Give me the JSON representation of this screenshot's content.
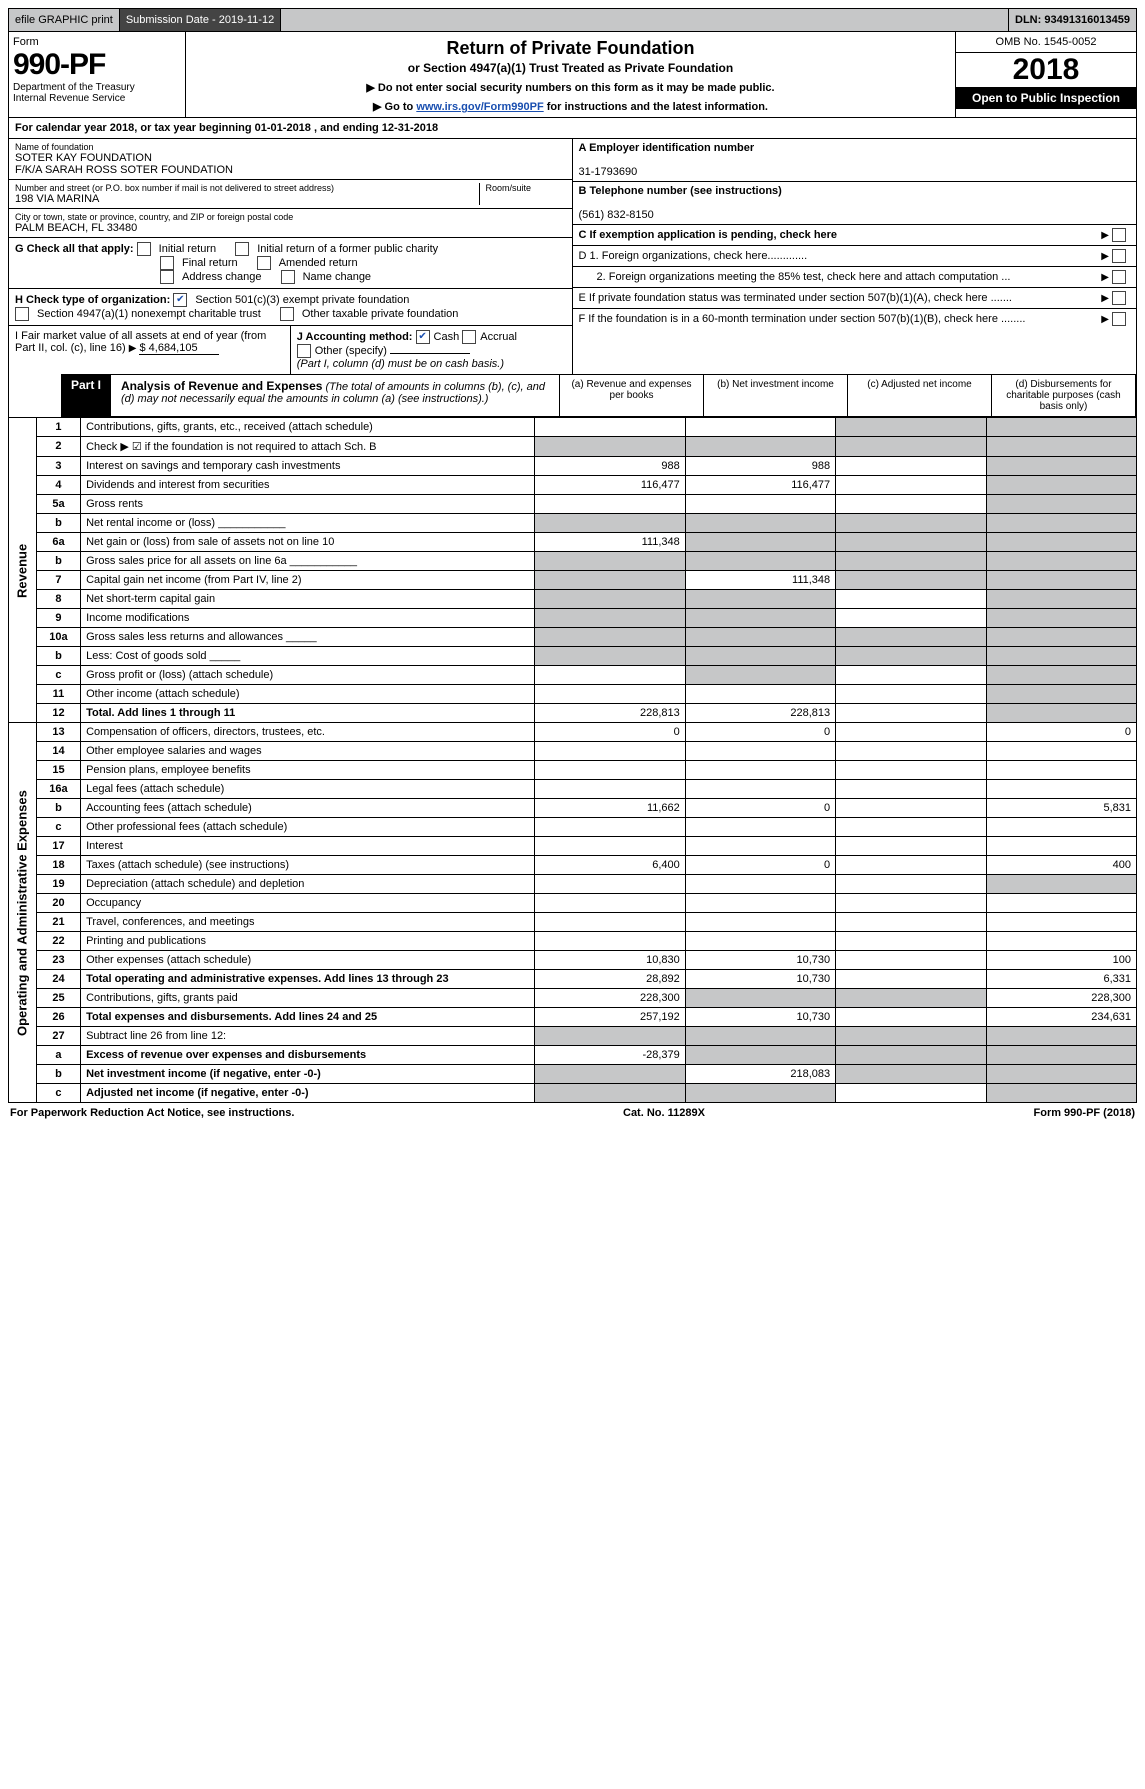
{
  "topbar": {
    "efile": "efile GRAPHIC print",
    "subLabel": "Submission Date - 2019-11-12",
    "dln": "DLN: 93491316013459"
  },
  "header": {
    "formWord": "Form",
    "formNo": "990-PF",
    "dept": "Department of the Treasury\nInternal Revenue Service",
    "title": "Return of Private Foundation",
    "subtitle": "or Section 4947(a)(1) Trust Treated as Private Foundation",
    "note1": "▶ Do not enter social security numbers on this form as it may be made public.",
    "note2": "▶ Go to ",
    "link": "www.irs.gov/Form990PF",
    "note2b": " for instructions and the latest information.",
    "omb": "OMB No. 1545-0052",
    "year": "2018",
    "inspect": "Open to Public Inspection"
  },
  "cal": "For calendar year 2018, or tax year beginning 01-01-2018                                            , and ending 12-31-2018",
  "id": {
    "nameLbl": "Name of foundation",
    "name1": "SOTER KAY FOUNDATION",
    "name2": "F/K/A SARAH ROSS SOTER FOUNDATION",
    "addrLbl": "Number and street (or P.O. box number if mail is not delivered to street address)",
    "addr": "198 VIA MARINA",
    "roomLbl": "Room/suite",
    "cityLbl": "City or town, state or province, country, and ZIP or foreign postal code",
    "city": "PALM BEACH, FL  33480",
    "einLbl": "A Employer identification number",
    "ein": "31-1793690",
    "telLbl": "B Telephone number (see instructions)",
    "tel": "(561) 832-8150",
    "cLbl": "C If exemption application is pending, check here",
    "d1": "D 1. Foreign organizations, check here.............",
    "d2": "2. Foreign organizations meeting the 85% test, check here and attach computation ...",
    "e": "E  If private foundation status was terminated under section 507(b)(1)(A), check here .......",
    "f": "F  If the foundation is in a 60-month termination under section 507(b)(1)(B), check here ........"
  },
  "g": {
    "lbl": "G Check all that apply:",
    "o1": "Initial return",
    "o2": "Initial return of a former public charity",
    "o3": "Final return",
    "o4": "Amended return",
    "o5": "Address change",
    "o6": "Name change"
  },
  "h": {
    "lbl": "H Check type of organization:",
    "o1": "Section 501(c)(3) exempt private foundation",
    "o2": "Section 4947(a)(1) nonexempt charitable trust",
    "o3": "Other taxable private foundation"
  },
  "i": {
    "lbl": "I Fair market value of all assets at end of year (from Part II, col. (c), line 16)",
    "val": "$  4,684,105"
  },
  "j": {
    "lbl": "J Accounting method:",
    "cash": "Cash",
    "accr": "Accrual",
    "other": "Other (specify)",
    "note": "(Part I, column (d) must be on cash basis.)"
  },
  "part1": {
    "tab": "Part I",
    "title": "Analysis of Revenue and Expenses",
    "note": " (The total of amounts in columns (b), (c), and (d) may not necessarily equal the amounts in column (a) (see instructions).)",
    "colA": "(a)    Revenue and expenses per books",
    "colB": "(b)    Net investment income",
    "colC": "(c)   Adjusted net income",
    "colD": "(d)   Disbursements for charitable purposes (cash basis only)"
  },
  "sideRev": "Revenue",
  "sideExp": "Operating and Administrative Expenses",
  "rows": [
    {
      "n": "1",
      "d": "Contributions, gifts, grants, etc., received (attach schedule)",
      "a": "",
      "b": "",
      "cGrey": true,
      "dGrey": true
    },
    {
      "n": "2",
      "d": "Check ▶ ☑ if the foundation is not required to attach Sch. B",
      "aGrey": true,
      "bGrey": true,
      "cGrey": true,
      "dGrey": true
    },
    {
      "n": "3",
      "d": "Interest on savings and temporary cash investments",
      "a": "988",
      "b": "988",
      "c": "",
      "dGrey": true
    },
    {
      "n": "4",
      "d": "Dividends and interest from securities",
      "a": "116,477",
      "b": "116,477",
      "c": "",
      "dGrey": true
    },
    {
      "n": "5a",
      "d": "Gross rents",
      "a": "",
      "b": "",
      "c": "",
      "dGrey": true
    },
    {
      "n": "b",
      "d": "Net rental income or (loss)   ___________",
      "aGrey": true,
      "bGrey": true,
      "cGrey": true,
      "dGrey": true
    },
    {
      "n": "6a",
      "d": "Net gain or (loss) from sale of assets not on line 10",
      "a": "111,348",
      "bGrey": true,
      "cGrey": true,
      "dGrey": true
    },
    {
      "n": "b",
      "d": "Gross sales price for all assets on line 6a  ___________",
      "aGrey": true,
      "bGrey": true,
      "cGrey": true,
      "dGrey": true
    },
    {
      "n": "7",
      "d": "Capital gain net income (from Part IV, line 2)",
      "aGrey": true,
      "b": "111,348",
      "cGrey": true,
      "dGrey": true
    },
    {
      "n": "8",
      "d": "Net short-term capital gain",
      "aGrey": true,
      "bGrey": true,
      "c": "",
      "dGrey": true
    },
    {
      "n": "9",
      "d": "Income modifications",
      "aGrey": true,
      "bGrey": true,
      "c": "",
      "dGrey": true
    },
    {
      "n": "10a",
      "d": "Gross sales less returns and allowances _____",
      "aGrey": true,
      "bGrey": true,
      "cGrey": true,
      "dGrey": true
    },
    {
      "n": "b",
      "d": "Less: Cost of goods sold  _____",
      "aGrey": true,
      "bGrey": true,
      "cGrey": true,
      "dGrey": true
    },
    {
      "n": "c",
      "d": "Gross profit or (loss) (attach schedule)",
      "a": "",
      "bGrey": true,
      "c": "",
      "dGrey": true
    },
    {
      "n": "11",
      "d": "Other income (attach schedule)",
      "a": "",
      "b": "",
      "c": "",
      "dGrey": true
    },
    {
      "n": "12",
      "d": "Total. Add lines 1 through 11",
      "bold": true,
      "a": "228,813",
      "b": "228,813",
      "c": "",
      "dGrey": true
    },
    {
      "n": "13",
      "d": "Compensation of officers, directors, trustees, etc.",
      "a": "0",
      "b": "0",
      "c": "",
      "dVal": "0"
    },
    {
      "n": "14",
      "d": "Other employee salaries and wages",
      "a": "",
      "b": "",
      "c": "",
      "dVal": ""
    },
    {
      "n": "15",
      "d": "Pension plans, employee benefits",
      "a": "",
      "b": "",
      "c": "",
      "dVal": ""
    },
    {
      "n": "16a",
      "d": "Legal fees (attach schedule)",
      "a": "",
      "b": "",
      "c": "",
      "dVal": ""
    },
    {
      "n": "b",
      "d": "Accounting fees (attach schedule)",
      "a": "11,662",
      "b": "0",
      "c": "",
      "dVal": "5,831"
    },
    {
      "n": "c",
      "d": "Other professional fees (attach schedule)",
      "a": "",
      "b": "",
      "c": "",
      "dVal": ""
    },
    {
      "n": "17",
      "d": "Interest",
      "a": "",
      "b": "",
      "c": "",
      "dVal": ""
    },
    {
      "n": "18",
      "d": "Taxes (attach schedule) (see instructions)",
      "a": "6,400",
      "b": "0",
      "c": "",
      "dVal": "400"
    },
    {
      "n": "19",
      "d": "Depreciation (attach schedule) and depletion",
      "a": "",
      "b": "",
      "c": "",
      "dGrey": true
    },
    {
      "n": "20",
      "d": "Occupancy",
      "a": "",
      "b": "",
      "c": "",
      "dVal": ""
    },
    {
      "n": "21",
      "d": "Travel, conferences, and meetings",
      "a": "",
      "b": "",
      "c": "",
      "dVal": ""
    },
    {
      "n": "22",
      "d": "Printing and publications",
      "a": "",
      "b": "",
      "c": "",
      "dVal": ""
    },
    {
      "n": "23",
      "d": "Other expenses (attach schedule)",
      "a": "10,830",
      "b": "10,730",
      "c": "",
      "dVal": "100"
    },
    {
      "n": "24",
      "d": "Total operating and administrative expenses. Add lines 13 through 23",
      "bold": true,
      "a": "28,892",
      "b": "10,730",
      "c": "",
      "dVal": "6,331"
    },
    {
      "n": "25",
      "d": "Contributions, gifts, grants paid",
      "a": "228,300",
      "bGrey": true,
      "cGrey": true,
      "dVal": "228,300"
    },
    {
      "n": "26",
      "d": "Total expenses and disbursements. Add lines 24 and 25",
      "bold": true,
      "a": "257,192",
      "b": "10,730",
      "c": "",
      "dVal": "234,631"
    },
    {
      "n": "27",
      "d": "Subtract line 26 from line 12:",
      "aGrey": true,
      "bGrey": true,
      "cGrey": true,
      "dGrey": true
    },
    {
      "n": "a",
      "d": "Excess of revenue over expenses and disbursements",
      "bold": true,
      "a": "-28,379",
      "bGrey": true,
      "cGrey": true,
      "dGrey": true
    },
    {
      "n": "b",
      "d": "Net investment income (if negative, enter -0-)",
      "bold": true,
      "aGrey": true,
      "b": "218,083",
      "cGrey": true,
      "dGrey": true
    },
    {
      "n": "c",
      "d": "Adjusted net income (if negative, enter -0-)",
      "bold": true,
      "aGrey": true,
      "bGrey": true,
      "c": "",
      "dGrey": true
    }
  ],
  "footer": {
    "l": "For Paperwork Reduction Act Notice, see instructions.",
    "m": "Cat. No. 11289X",
    "r": "Form 990-PF (2018)"
  }
}
